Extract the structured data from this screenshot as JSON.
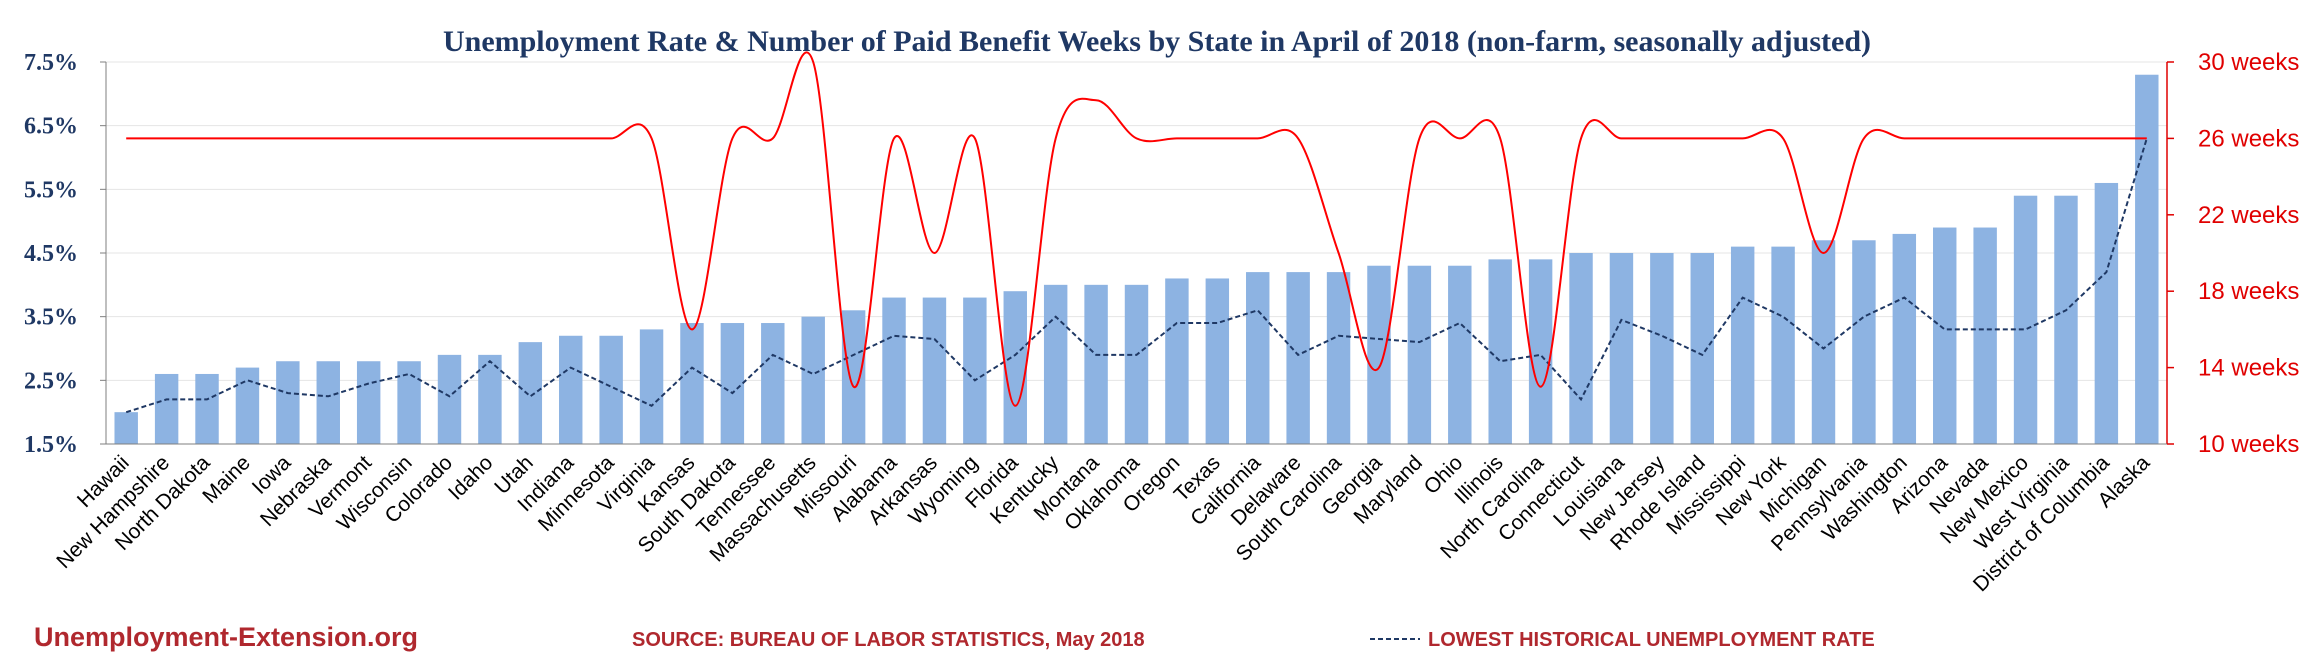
{
  "chart_data": {
    "type": "bar",
    "title": "Unemployment Rate & Number of Paid Benefit Weeks by State in April of 2018 (non-farm, seasonally adjusted)",
    "categories": [
      "Hawaii",
      "New Hampshire",
      "North Dakota",
      "Maine",
      "Iowa",
      "Nebraska",
      "Vermont",
      "Wisconsin",
      "Colorado",
      "Idaho",
      "Utah",
      "Indiana",
      "Minnesota",
      "Virginia",
      "Kansas",
      "South Dakota",
      "Tennessee",
      "Massachusetts",
      "Missouri",
      "Alabama",
      "Arkansas",
      "Wyoming",
      "Florida",
      "Kentucky",
      "Montana",
      "Oklahoma",
      "Oregon",
      "Texas",
      "California",
      "Delaware",
      "South Carolina",
      "Georgia",
      "Maryland",
      "Ohio",
      "Illinois",
      "North Carolina",
      "Connecticut",
      "Louisiana",
      "New Jersey",
      "Rhode Island",
      "Mississippi",
      "New York",
      "Michigan",
      "Pennsylvania",
      "Washington",
      "Arizona",
      "Nevada",
      "New Mexico",
      "West Virginia",
      "District of Columbia",
      "Alaska"
    ],
    "y_left": {
      "ticks": [
        "1.5%",
        "2.5%",
        "3.5%",
        "4.5%",
        "5.5%",
        "6.5%",
        "7.5%"
      ],
      "min": 1.5,
      "max": 7.5,
      "unit": "%"
    },
    "y_right": {
      "ticks": [
        "10 weeks",
        "14 weeks",
        "18 weeks",
        "22 weeks",
        "26 weeks",
        "30 weeks"
      ],
      "min": 10,
      "max": 30
    },
    "series": [
      {
        "kind": "bar",
        "axis": "left",
        "color": "#8db3e2",
        "values": [
          2.0,
          2.6,
          2.6,
          2.7,
          2.8,
          2.8,
          2.8,
          2.8,
          2.9,
          2.9,
          3.1,
          3.2,
          3.2,
          3.3,
          3.4,
          3.4,
          3.4,
          3.5,
          3.6,
          3.8,
          3.8,
          3.8,
          3.9,
          4.0,
          4.0,
          4.0,
          4.1,
          4.1,
          4.2,
          4.2,
          4.2,
          4.3,
          4.3,
          4.3,
          4.4,
          4.4,
          4.5,
          4.5,
          4.5,
          4.5,
          4.6,
          4.6,
          4.7,
          4.7,
          4.8,
          4.9,
          4.9,
          5.4,
          5.4,
          5.6,
          7.3
        ]
      },
      {
        "kind": "line-dashed",
        "axis": "left",
        "name": "LOWEST HISTORICAL UNEMPLOYMENT RATE",
        "color": "#1f3864",
        "values": [
          2.0,
          2.2,
          2.2,
          2.5,
          2.3,
          2.25,
          2.45,
          2.6,
          2.25,
          2.8,
          2.25,
          2.7,
          2.4,
          2.1,
          2.7,
          2.3,
          2.9,
          2.6,
          2.9,
          3.2,
          3.15,
          2.5,
          2.9,
          3.5,
          2.9,
          2.9,
          3.4,
          3.4,
          3.6,
          2.9,
          3.2,
          3.15,
          3.1,
          3.4,
          2.8,
          2.9,
          2.2,
          3.45,
          3.2,
          2.9,
          3.8,
          3.5,
          3.0,
          3.5,
          3.8,
          3.3,
          3.3,
          3.3,
          3.6,
          4.2,
          6.3
        ]
      },
      {
        "kind": "line-smooth",
        "axis": "right",
        "name": "Paid Benefit Weeks",
        "color": "#ff0000",
        "values": [
          26,
          26,
          26,
          26,
          26,
          26,
          26,
          26,
          26,
          26,
          26,
          26,
          26,
          26,
          16,
          26,
          26,
          30,
          13,
          26,
          20,
          26,
          12,
          26,
          28,
          26,
          26,
          26,
          26,
          26,
          20,
          14,
          26,
          26,
          26,
          13,
          26,
          26,
          26,
          26,
          26,
          26,
          20,
          26,
          26,
          26,
          26,
          26,
          26,
          26,
          26
        ]
      }
    ]
  },
  "footer": {
    "brand": "Unemployment-Extension.org",
    "source": "SOURCE: BUREAU OF LABOR STATISTICS, May 2018",
    "legend_label": "LOWEST HISTORICAL UNEMPLOYMENT RATE"
  }
}
